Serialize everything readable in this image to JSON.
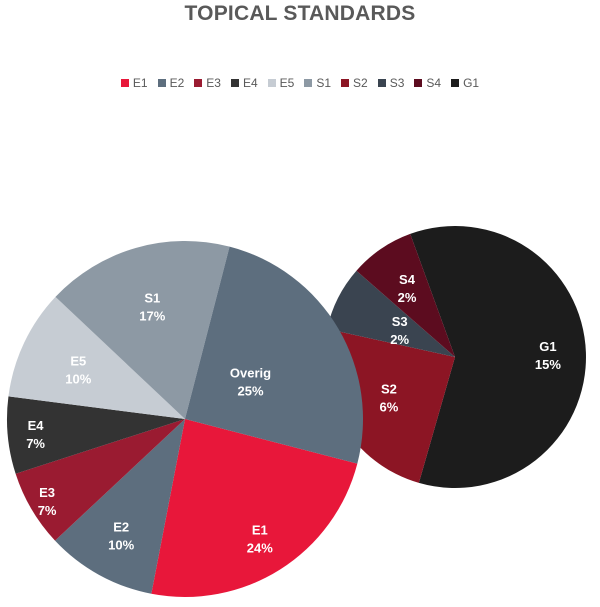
{
  "chart_data": {
    "type": "pie",
    "title": "TOPICAL STANDARDS",
    "legend": {
      "placement": "top",
      "entries": [
        {
          "name": "E1",
          "color": "#e8173a"
        },
        {
          "name": "E2",
          "color": "#5d6e7e"
        },
        {
          "name": "E3",
          "color": "#9a1b31"
        },
        {
          "name": "E4",
          "color": "#333333"
        },
        {
          "name": "E5",
          "color": "#c6ccd3"
        },
        {
          "name": "S1",
          "color": "#8d99a4"
        },
        {
          "name": "S2",
          "color": "#8c1524"
        },
        {
          "name": "S3",
          "color": "#3a4450"
        },
        {
          "name": "S4",
          "color": "#5c0c1f"
        },
        {
          "name": "G1",
          "color": "#1c1c1c"
        }
      ]
    },
    "main_pie": {
      "slices": [
        {
          "label": "E1",
          "value": 24,
          "display": "24%",
          "color": "#e8173a"
        },
        {
          "label": "E2",
          "value": 10,
          "display": "10%",
          "color": "#5d6e7e"
        },
        {
          "label": "E3",
          "value": 7,
          "display": "7%",
          "color": "#9a1b31"
        },
        {
          "label": "E4",
          "value": 7,
          "display": "7%",
          "color": "#333333"
        },
        {
          "label": "E5",
          "value": 10,
          "display": "10%",
          "color": "#c6ccd3"
        },
        {
          "label": "S1",
          "value": 17,
          "display": "17%",
          "color": "#8d99a4"
        },
        {
          "label": "Overig",
          "value": 25,
          "display": "25%",
          "color": "#5d6e7e"
        }
      ]
    },
    "secondary_pie": {
      "slices": [
        {
          "label": "G1",
          "value": 15,
          "display": "15%",
          "color": "#1c1c1c"
        },
        {
          "label": "S2",
          "value": 6,
          "display": "6%",
          "color": "#8c1524"
        },
        {
          "label": "S3",
          "value": 2,
          "display": "2%",
          "color": "#3a4450"
        },
        {
          "label": "S4",
          "value": 2,
          "display": "2%",
          "color": "#5c0c1f"
        }
      ]
    }
  }
}
